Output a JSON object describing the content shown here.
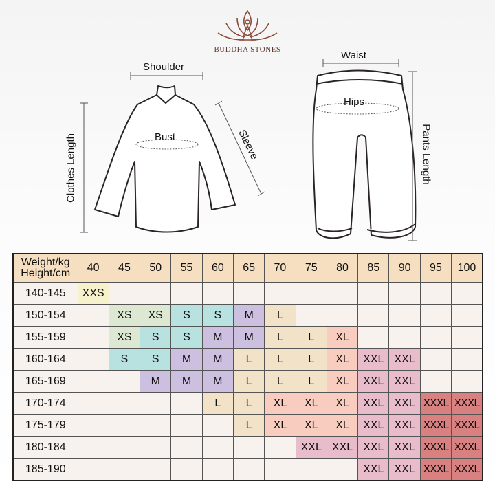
{
  "brand": {
    "name": "BUDDHA STONES",
    "logo_color": "#8b4a3a"
  },
  "diagram": {
    "top_labels": {
      "shoulder": "Shoulder",
      "bust": "Bust",
      "clothes_length": "Clothes Length",
      "sleeve": "Sleeve"
    },
    "pants_labels": {
      "waist": "Waist",
      "hips": "Hips",
      "pants_length": "Pants Length"
    }
  },
  "size_table": {
    "corner": {
      "line1": "Weight/kg",
      "line2": "Height/cm"
    },
    "weights": [
      "40",
      "45",
      "50",
      "55",
      "60",
      "65",
      "70",
      "75",
      "80",
      "85",
      "90",
      "95",
      "100"
    ],
    "rows": [
      {
        "height": "140-145",
        "sizes": [
          "XXS",
          "",
          "",
          "",
          "",
          "",
          "",
          "",
          "",
          "",
          "",
          "",
          ""
        ]
      },
      {
        "height": "150-154",
        "sizes": [
          "",
          "XS",
          "XS",
          "S",
          "S",
          "M",
          "L",
          "",
          "",
          "",
          "",
          "",
          ""
        ]
      },
      {
        "height": "155-159",
        "sizes": [
          "",
          "XS",
          "S",
          "S",
          "M",
          "M",
          "L",
          "L",
          "XL",
          "",
          "",
          "",
          ""
        ]
      },
      {
        "height": "160-164",
        "sizes": [
          "",
          "S",
          "S",
          "M",
          "M",
          "L",
          "L",
          "L",
          "XL",
          "XXL",
          "XXL",
          "",
          ""
        ]
      },
      {
        "height": "165-169",
        "sizes": [
          "",
          "",
          "M",
          "M",
          "M",
          "L",
          "L",
          "L",
          "XL",
          "XXL",
          "XXL",
          "",
          ""
        ]
      },
      {
        "height": "170-174",
        "sizes": [
          "",
          "",
          "",
          "",
          "L",
          "L",
          "XL",
          "XL",
          "XL",
          "XXL",
          "XXL",
          "XXXL",
          "XXXL"
        ]
      },
      {
        "height": "175-179",
        "sizes": [
          "",
          "",
          "",
          "",
          "",
          "L",
          "XL",
          "XL",
          "XL",
          "XXL",
          "XXL",
          "XXXL",
          "XXXL"
        ]
      },
      {
        "height": "180-184",
        "sizes": [
          "",
          "",
          "",
          "",
          "",
          "",
          "",
          "XXL",
          "XXL",
          "XXL",
          "XXL",
          "XXXL",
          "XXXL"
        ]
      },
      {
        "height": "185-190",
        "sizes": [
          "",
          "",
          "",
          "",
          "",
          "",
          "",
          "",
          "",
          "XXL",
          "XXL",
          "XXXL",
          "XXXL"
        ]
      }
    ],
    "colors": {
      "header": "#f5dfc0",
      "empty": "#f7f2ee",
      "XXS": "#f8f2cc",
      "XS": "#dde8d2",
      "S": "#b8e2e0",
      "M": "#cdbfe0",
      "L": "#f2e2c8",
      "XL": "#f8cdc0",
      "XXL": "#e8bccb",
      "XXXL": "#d98080"
    }
  }
}
